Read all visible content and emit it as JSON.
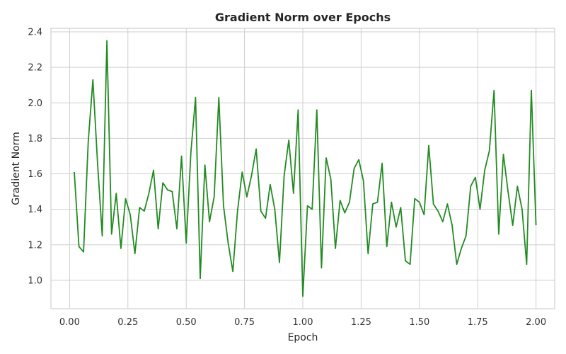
{
  "chart_data": {
    "type": "line",
    "title": "Gradient Norm over Epochs",
    "xlabel": "Epoch",
    "ylabel": "Gradient Norm",
    "xlim": [
      -0.08,
      2.08
    ],
    "ylim": [
      0.84,
      2.42
    ],
    "grid": true,
    "line_color": "#228b22",
    "x_ticks": [
      0.0,
      0.25,
      0.5,
      0.75,
      1.0,
      1.25,
      1.5,
      1.75,
      2.0
    ],
    "x_tick_labels": [
      "0.00",
      "0.25",
      "0.50",
      "0.75",
      "1.00",
      "1.25",
      "1.50",
      "1.75",
      "2.00"
    ],
    "y_ticks": [
      1.0,
      1.2,
      1.4,
      1.6,
      1.8,
      2.0,
      2.2,
      2.4
    ],
    "y_tick_labels": [
      "1.0",
      "1.2",
      "1.4",
      "1.6",
      "1.8",
      "2.0",
      "2.2",
      "2.4"
    ],
    "series": [
      {
        "x": [
          0.02,
          0.04,
          0.06,
          0.08,
          0.1,
          0.12,
          0.14,
          0.16,
          0.18,
          0.2,
          0.22,
          0.24,
          0.26,
          0.28,
          0.3,
          0.32,
          0.34,
          0.36,
          0.38,
          0.4,
          0.42,
          0.44,
          0.46,
          0.48,
          0.5,
          0.52,
          0.54,
          0.56,
          0.58,
          0.6,
          0.62,
          0.64,
          0.66,
          0.68,
          0.7,
          0.72,
          0.74,
          0.76,
          0.78,
          0.8,
          0.82,
          0.84,
          0.86,
          0.88,
          0.9,
          0.92,
          0.94,
          0.96,
          0.98,
          1.0,
          1.02,
          1.04,
          1.06,
          1.08,
          1.1,
          1.12,
          1.14,
          1.16,
          1.18,
          1.2,
          1.22,
          1.24,
          1.26,
          1.28,
          1.3,
          1.32,
          1.34,
          1.36,
          1.38,
          1.4,
          1.42,
          1.44,
          1.46,
          1.48,
          1.5,
          1.52,
          1.54,
          1.56,
          1.58,
          1.6,
          1.62,
          1.64,
          1.66,
          1.68,
          1.7,
          1.72,
          1.74,
          1.76,
          1.78,
          1.8,
          1.82,
          1.84,
          1.86,
          1.88,
          1.9,
          1.92,
          1.94,
          1.96,
          1.98,
          2.0
        ],
        "y": [
          1.61,
          1.19,
          1.16,
          1.78,
          2.13,
          1.66,
          1.25,
          2.35,
          1.26,
          1.49,
          1.18,
          1.46,
          1.37,
          1.15,
          1.41,
          1.39,
          1.49,
          1.62,
          1.29,
          1.55,
          1.51,
          1.5,
          1.29,
          1.7,
          1.21,
          1.72,
          2.03,
          1.01,
          1.65,
          1.33,
          1.47,
          2.03,
          1.42,
          1.21,
          1.05,
          1.39,
          1.61,
          1.47,
          1.59,
          1.74,
          1.39,
          1.35,
          1.54,
          1.4,
          1.1,
          1.59,
          1.79,
          1.49,
          1.96,
          0.91,
          1.42,
          1.4,
          1.96,
          1.07,
          1.69,
          1.57,
          1.18,
          1.45,
          1.38,
          1.44,
          1.63,
          1.68,
          1.56,
          1.15,
          1.43,
          1.44,
          1.66,
          1.19,
          1.44,
          1.3,
          1.41,
          1.11,
          1.09,
          1.46,
          1.44,
          1.37,
          1.76,
          1.43,
          1.39,
          1.33,
          1.43,
          1.31,
          1.09,
          1.18,
          1.25,
          1.53,
          1.58,
          1.4,
          1.62,
          1.73,
          2.07,
          1.26,
          1.71,
          1.5,
          1.31,
          1.53,
          1.4,
          1.09,
          2.07,
          1.31
        ]
      }
    ]
  }
}
